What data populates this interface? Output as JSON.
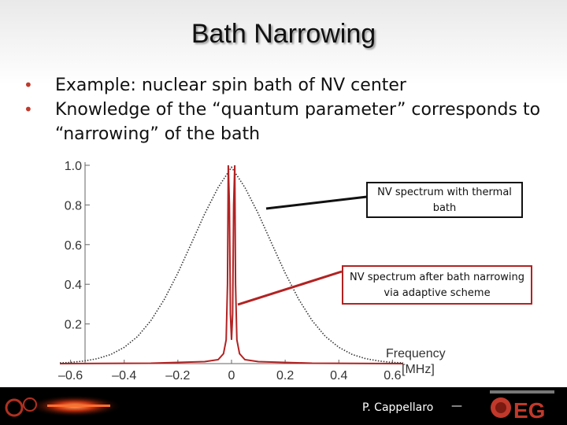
{
  "slide": {
    "title": "Bath Narrowing",
    "bullets": [
      "Example: nuclear spin bath of NV center",
      "Knowledge of the “quantum parameter” corresponds to “narrowing” of the bath"
    ]
  },
  "chart_data": {
    "type": "line",
    "title": "",
    "xlabel": "Frequency [MHz]",
    "ylabel": "",
    "xlim": [
      -0.64,
      0.64
    ],
    "ylim": [
      0,
      1.0
    ],
    "x_ticks": [
      -0.6,
      -0.4,
      -0.2,
      0,
      0.2,
      0.4,
      0.6
    ],
    "x_tick_labels": [
      "–0.6",
      "–0.4",
      "–0.2",
      "0",
      "0.2",
      "0.4",
      "0.6"
    ],
    "y_ticks": [
      0.2,
      0.4,
      0.6,
      0.8,
      1.0
    ],
    "y_tick_labels": [
      "0.2",
      "0.4",
      "0.6",
      "0.8",
      "1.0"
    ],
    "grid": false,
    "series": [
      {
        "description_color": "#333333",
        "style": "dotted",
        "x": [
          -0.64,
          -0.6,
          -0.55,
          -0.5,
          -0.45,
          -0.4,
          -0.35,
          -0.3,
          -0.25,
          -0.2,
          -0.15,
          -0.1,
          -0.05,
          0,
          0.05,
          0.1,
          0.15,
          0.2,
          0.25,
          0.3,
          0.35,
          0.4,
          0.45,
          0.5,
          0.55,
          0.6,
          0.64
        ],
        "y": [
          0.004,
          0.006,
          0.013,
          0.025,
          0.046,
          0.082,
          0.137,
          0.218,
          0.325,
          0.457,
          0.605,
          0.755,
          0.888,
          0.99,
          0.888,
          0.755,
          0.605,
          0.457,
          0.325,
          0.218,
          0.137,
          0.082,
          0.046,
          0.025,
          0.013,
          0.006,
          0.004
        ]
      },
      {
        "description_color": "#b22222",
        "style": "solid",
        "x": [
          -0.64,
          -0.3,
          -0.1,
          -0.05,
          -0.03,
          -0.02,
          -0.015,
          -0.012,
          -0.008,
          -0.004,
          0,
          0.004,
          0.008,
          0.012,
          0.015,
          0.02,
          0.03,
          0.05,
          0.1,
          0.3,
          0.64
        ],
        "y": [
          0.0,
          0.002,
          0.01,
          0.02,
          0.05,
          0.12,
          0.4,
          1.0,
          0.8,
          0.25,
          0.12,
          0.25,
          0.8,
          1.0,
          0.4,
          0.12,
          0.05,
          0.02,
          0.01,
          0.002,
          0.0
        ]
      }
    ],
    "annotations": [
      {
        "text": "NV spectrum with thermal bath",
        "color": "#111111"
      },
      {
        "text": "NV spectrum after bath narrowing via adaptive scheme",
        "color": "#b22222"
      }
    ]
  },
  "callouts": {
    "thermal": "NV spectrum with thermal bath",
    "narrowed": "NV spectrum after bath narrowing via adaptive scheme"
  },
  "axis_labels": {
    "x_line1": "Frequency",
    "x_line2": "[MHz]"
  },
  "footer": {
    "author": "P. Cappellaro",
    "dash": "—",
    "logo_icon": "qeg-logo"
  }
}
